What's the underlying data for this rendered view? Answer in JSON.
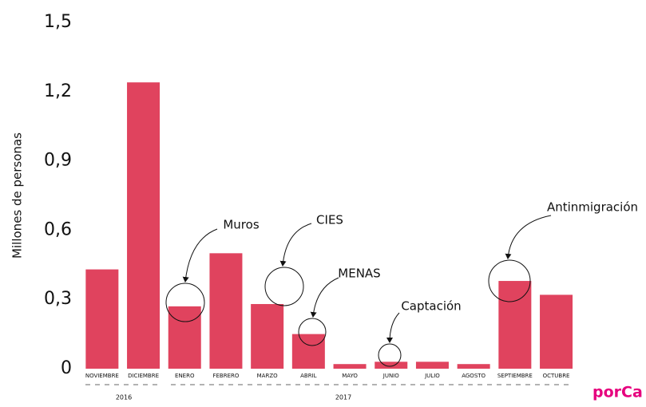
{
  "chart_data": {
    "type": "bar",
    "y_label": "Millones de personas",
    "categories": [
      "NOVIEMBRE",
      "DICIEMBRE",
      "ENERO",
      "FEBRERO",
      "MARZO",
      "ABRIL",
      "MAYO",
      "JUNIO",
      "JULIO",
      "AGOSTO",
      "SEPTIEMBRE",
      "OCTUBRE"
    ],
    "values": [
      0.43,
      1.24,
      0.27,
      0.5,
      0.28,
      0.15,
      0.02,
      0.03,
      0.03,
      0.02,
      0.38,
      0.32
    ],
    "color": "#e0435e",
    "ylim": [
      0,
      1.5
    ],
    "yticks": [
      0,
      {
        "value": 0.3,
        "label": "0,3"
      },
      {
        "value": 0.6,
        "label": "0,6"
      },
      {
        "value": 0.9,
        "label": "0,9"
      },
      {
        "value": 1.2,
        "label": "1,2"
      },
      {
        "value": 1.5,
        "label": "1,5"
      }
    ],
    "years": [
      "2016",
      "2017"
    ],
    "annotations": [
      "Muros",
      "CIES",
      "MENAS",
      "Captación",
      "Antinmigración"
    ],
    "brand": "porCa"
  }
}
